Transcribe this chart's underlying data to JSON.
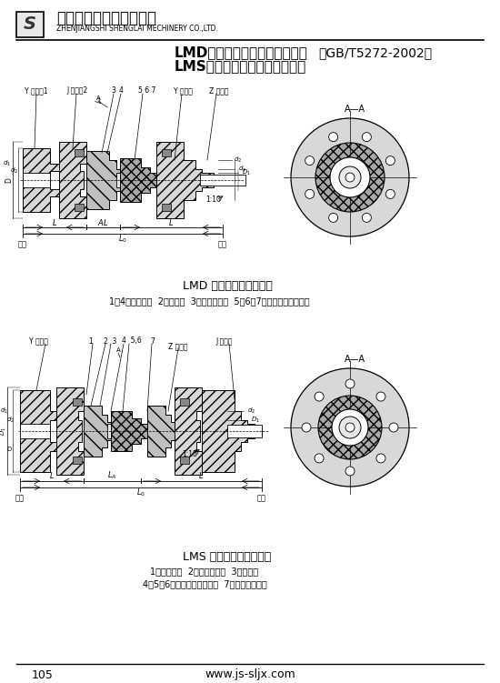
{
  "bg_color": "#ffffff",
  "page_width": 5.5,
  "page_height": 7.51,
  "company_name_cn": "镇江市盛莱机械有限公司",
  "company_name_en": "ZHENJIANGSHI SHENGLAI MECHINERY CO.,LTD.",
  "title_line1": "LMD型单法兰梅花形弹性联轴器",
  "title_line2": "LMS型双法兰梅花形弹性联轴器",
  "title_std": "（GB/T5272-2002）",
  "lmd_caption": "LMD 型梅花形弹性联轴器",
  "lmd_desc": "1、4一半联轴器  2一弹性件  3一法兰联接件  5、6、7一螺栓、螺母、垫圈",
  "lms_caption": "LMS 型梅花形弹性联轴器",
  "lms_desc1": "1一半联轴器  2一法兰联接件  3一弹性件",
  "lms_desc2": "4、5、6一螺栓、螺母、垫圈  7一法兰半联轴器",
  "page_num": "105",
  "website": "www.js-sljx.com"
}
